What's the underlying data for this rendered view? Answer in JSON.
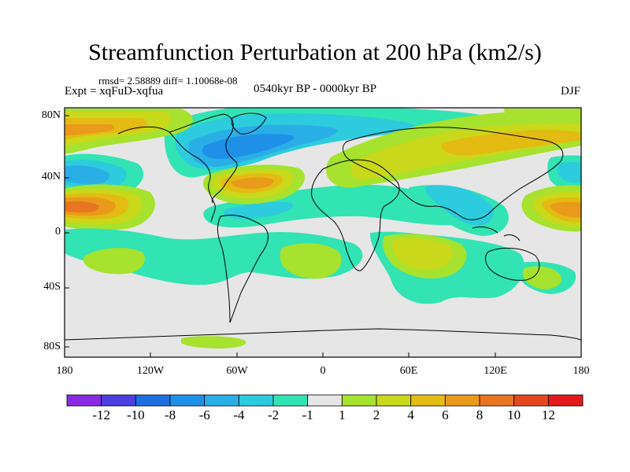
{
  "title": "Streamfunction Perturbation at 200 hPa (km2/s)",
  "stats": "rmsd= 2.58889 diff= 1.10068e-08",
  "experiment": "Expt = xqFuD-xqfua",
  "period": "0540kyr BP - 0000kyr BP",
  "season": "DJF",
  "axes": {
    "y_ticks": [
      "80N",
      "40N",
      "0",
      "40S",
      "80S"
    ],
    "x_ticks": [
      "180",
      "120W",
      "60W",
      "0",
      "60E",
      "120E",
      "180"
    ]
  },
  "colorbar": {
    "labels": [
      "-12",
      "-10",
      "-8",
      "-6",
      "-4",
      "-2",
      "-1",
      "1",
      "2",
      "4",
      "6",
      "8",
      "10",
      "12"
    ],
    "colors": [
      "#8a2be2",
      "#4b3fe0",
      "#1f6fe0",
      "#1e90e8",
      "#29aee6",
      "#2ccbdd",
      "#32e3b4",
      "#e6e6e6",
      "#a6e22e",
      "#c9d81a",
      "#e3bb12",
      "#e99a1b",
      "#e8751f",
      "#e4481e",
      "#e41a1a"
    ]
  },
  "colors": {
    "neutral": "#e6e6e6",
    "coast": "#000000"
  }
}
